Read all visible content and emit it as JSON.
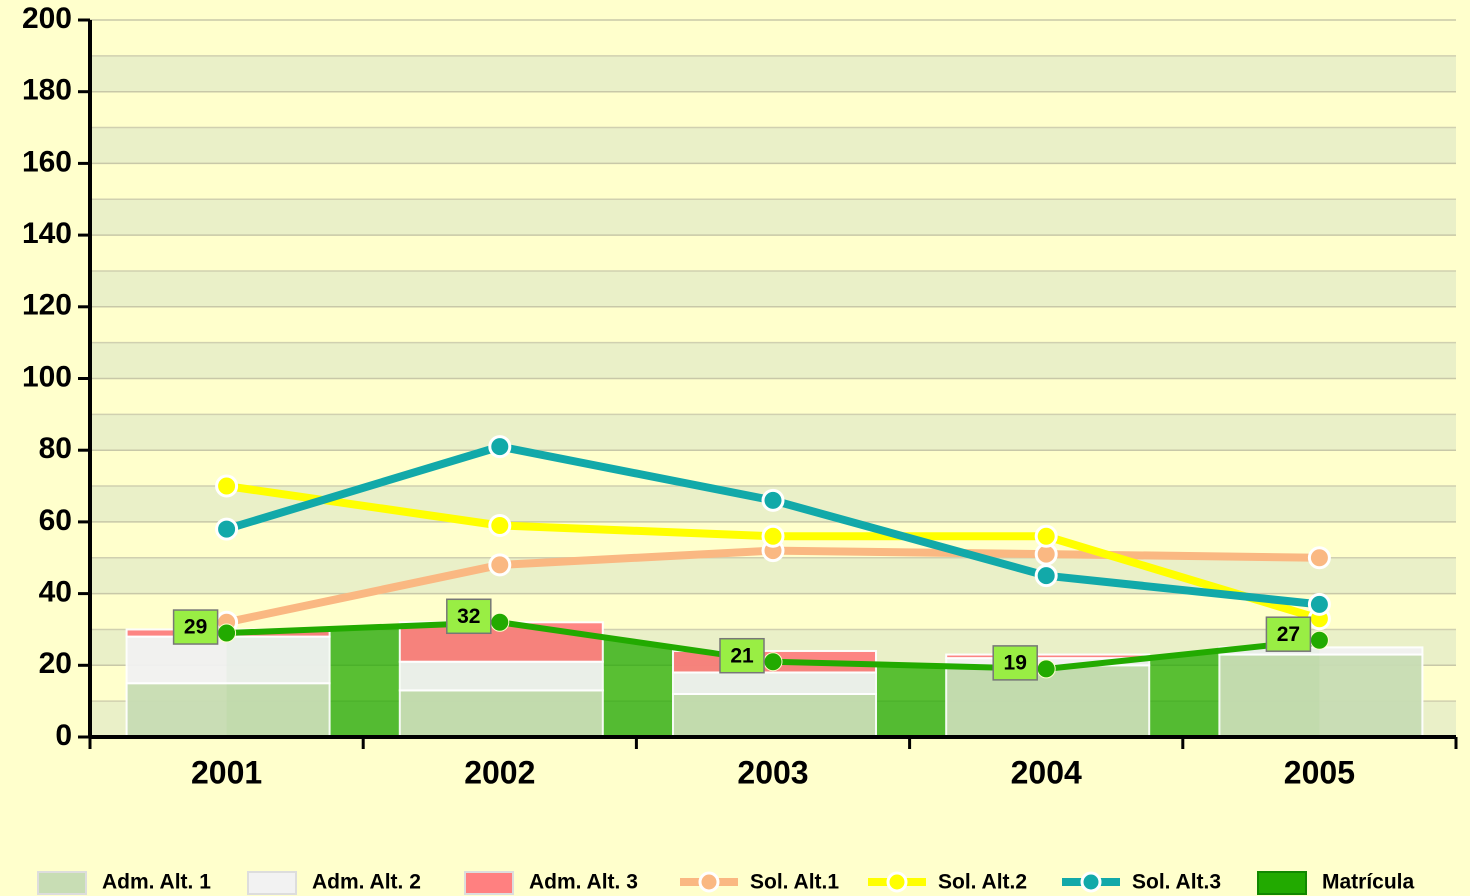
{
  "chart_data": {
    "type": "combo",
    "categories": [
      "2001",
      "2002",
      "2003",
      "2004",
      "2005"
    ],
    "ylim": [
      0,
      200
    ],
    "yticks": [
      0,
      20,
      40,
      60,
      80,
      100,
      120,
      140,
      160,
      180,
      200
    ],
    "grid": true,
    "series": [
      {
        "name": "Adm. Alt. 1",
        "type": "bar",
        "color": "#c8ddb4",
        "values": [
          15,
          13,
          12,
          20,
          23
        ]
      },
      {
        "name": "Adm. Alt. 2",
        "type": "bar",
        "color": "#f2f2f2",
        "values": [
          13,
          8,
          6,
          2,
          2
        ]
      },
      {
        "name": "Adm. Alt. 3",
        "type": "bar",
        "color": "#ff8080",
        "values": [
          2,
          11,
          6,
          1,
          0
        ]
      },
      {
        "name": "Sol. Alt.1",
        "type": "line",
        "color": "#fab882",
        "values": [
          32,
          48,
          52,
          51,
          50
        ]
      },
      {
        "name": "Sol. Alt.2",
        "type": "line",
        "color": "#ffff00",
        "values": [
          70,
          59,
          56,
          56,
          33
        ]
      },
      {
        "name": "Sol. Alt.3",
        "type": "line",
        "color": "#12a9a9",
        "values": [
          58,
          81,
          66,
          45,
          37
        ]
      },
      {
        "name": "Matrícula",
        "type": "area",
        "color": "#22aa00",
        "values": [
          29,
          32,
          21,
          19,
          27
        ]
      }
    ]
  }
}
